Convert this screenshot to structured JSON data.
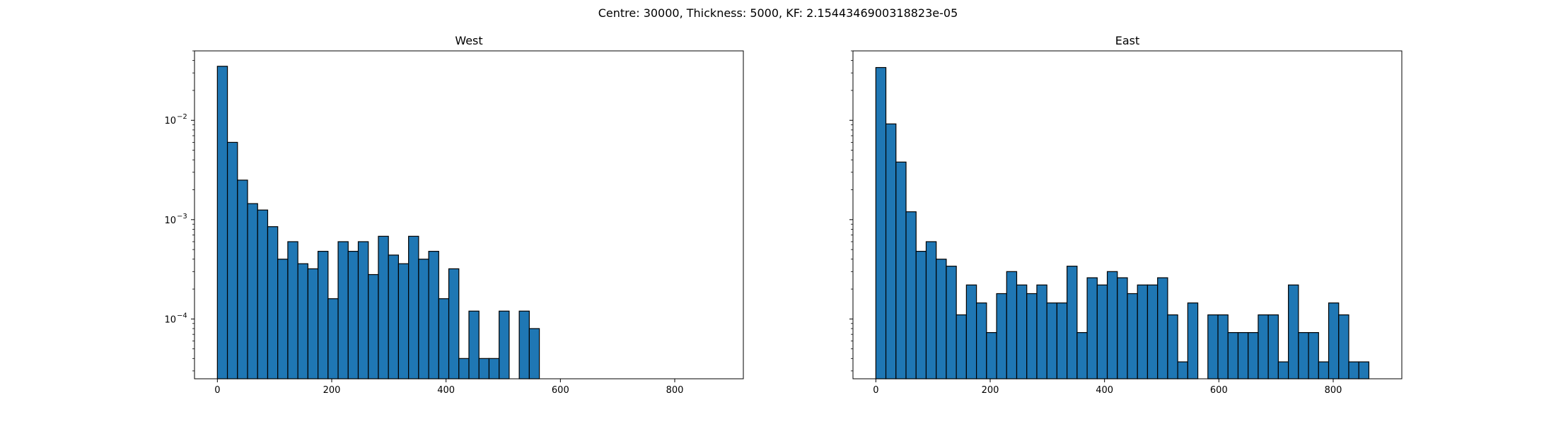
{
  "figure": {
    "suptitle": "Centre: 30000, Thickness: 5000, KF: 2.1544346900318823e-05"
  },
  "chart_data": [
    {
      "type": "bar",
      "title": "West",
      "xlabel": "",
      "ylabel": "",
      "y_scale": "log",
      "xlim": [
        -40,
        920
      ],
      "ylim": [
        2.5e-05,
        0.05
      ],
      "x_ticks": [
        0,
        200,
        400,
        600,
        800
      ],
      "x_tick_labels": [
        "0",
        "200",
        "400",
        "600",
        "800"
      ],
      "y_ticks": [
        0.0001,
        0.001,
        0.01
      ],
      "y_tick_labels": [
        "10",
        "10",
        "10"
      ],
      "y_tick_exponents": [
        "−4",
        "−3",
        "−2"
      ],
      "bin_width": 17.6,
      "bin_edges_start": 0,
      "bar_color": "#1f77b4",
      "edge_color": "#000000",
      "values": [
        0.035,
        0.006,
        0.0025,
        0.00145,
        0.00125,
        0.00085,
        0.0004,
        0.0006,
        0.00036,
        0.00032,
        0.00048,
        0.00016,
        0.0006,
        0.00048,
        0.0006,
        0.00028,
        0.00068,
        0.00044,
        0.00036,
        0.00068,
        0.0004,
        0.00048,
        0.00016,
        0.00032,
        4e-05,
        0.00012,
        4e-05,
        4e-05,
        0.00012,
        0,
        0.00012,
        8e-05,
        0,
        0,
        0,
        0,
        0,
        0,
        0,
        0,
        0,
        0,
        0,
        0,
        0,
        0,
        0,
        0,
        0,
        0
      ]
    },
    {
      "type": "bar",
      "title": "East",
      "xlabel": "",
      "ylabel": "",
      "y_scale": "log",
      "xlim": [
        -40,
        920
      ],
      "ylim": [
        2.5e-05,
        0.05
      ],
      "x_ticks": [
        0,
        200,
        400,
        600,
        800
      ],
      "x_tick_labels": [
        "0",
        "200",
        "400",
        "600",
        "800"
      ],
      "y_ticks": [
        0.0001,
        0.001,
        0.01
      ],
      "y_tick_labels": [
        "",
        "",
        ""
      ],
      "y_tick_exponents": [
        "",
        "",
        ""
      ],
      "bin_width": 17.6,
      "bin_edges_start": 0,
      "bar_color": "#1f77b4",
      "edge_color": "#000000",
      "values": [
        0.034,
        0.0092,
        0.0038,
        0.0012,
        0.00048,
        0.0006,
        0.0004,
        0.00034,
        0.00011,
        0.00022,
        0.000145,
        7.3e-05,
        0.00018,
        0.0003,
        0.00022,
        0.00018,
        0.00022,
        0.000145,
        0.000145,
        0.00034,
        7.3e-05,
        0.00026,
        0.00022,
        0.0003,
        0.00026,
        0.00018,
        0.00022,
        0.00022,
        0.00026,
        0.00011,
        3.7e-05,
        0.000145,
        0,
        0.00011,
        0.00011,
        7.3e-05,
        7.3e-05,
        7.3e-05,
        0.00011,
        0.00011,
        3.7e-05,
        0.00022,
        7.3e-05,
        7.3e-05,
        3.7e-05,
        0.000145,
        0.00011,
        3.7e-05,
        3.7e-05,
        0
      ]
    }
  ]
}
